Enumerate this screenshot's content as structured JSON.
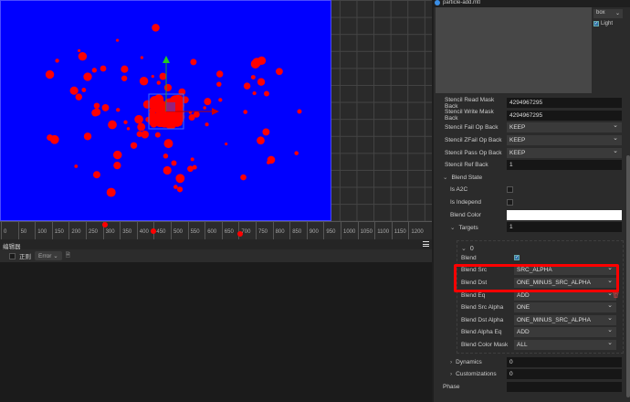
{
  "scene": {
    "background_color": "#0000ff",
    "particle_color": "#ff0000",
    "ruler_ticks": [
      "0",
      "50",
      "100",
      "150",
      "200",
      "250",
      "300",
      "350",
      "400",
      "450",
      "500",
      "550",
      "600",
      "650",
      "700",
      "750",
      "800",
      "850",
      "900",
      "950",
      "1000",
      "1050",
      "1100",
      "1150",
      "1200"
    ]
  },
  "console": {
    "panel_title": "编辑器",
    "regex_label": "正则",
    "level_select": "Error"
  },
  "inspector": {
    "title": "particle-add.mtl",
    "preview_shape": "box",
    "light_label": "Light",
    "light_checked": true,
    "stencil": [
      {
        "label": "Stencil Read Mask Back",
        "value": "4294967295",
        "type": "input"
      },
      {
        "label": "Stencil Write Mask Back",
        "value": "4294967295",
        "type": "input"
      },
      {
        "label": "Stencil Fail Op Back",
        "value": "KEEP",
        "type": "select"
      },
      {
        "label": "Stencil ZFail Op Back",
        "value": "KEEP",
        "type": "select"
      },
      {
        "label": "Stencil Pass Op Back",
        "value": "KEEP",
        "type": "select"
      },
      {
        "label": "Stencil Ref Back",
        "value": "1",
        "type": "input"
      }
    ],
    "blend_state": {
      "label": "Blend State",
      "is_a2c": "Is A2C",
      "is_independ": "Is Independ",
      "blend_color": "Blend Color",
      "blend_color_value": "#ffffff",
      "targets": "Targets",
      "targets_value": "1",
      "target_index": "0",
      "blend": "Blend",
      "blend_checked": true,
      "fields": [
        {
          "label": "Blend Src",
          "value": "SRC_ALPHA",
          "highlighted": true
        },
        {
          "label": "Blend Dst",
          "value": "ONE_MINUS_SRC_ALPHA",
          "highlighted": true
        },
        {
          "label": "Blend Eq",
          "value": "ADD"
        },
        {
          "label": "Blend Src Alpha",
          "value": "ONE"
        },
        {
          "label": "Blend Dst Alpha",
          "value": "ONE_MINUS_SRC_ALPHA"
        },
        {
          "label": "Blend Alpha Eq",
          "value": "ADD"
        },
        {
          "label": "Blend Color Mask",
          "value": "ALL"
        }
      ]
    },
    "dynamics": {
      "label": "Dynamics",
      "value": "0"
    },
    "customizations": {
      "label": "Customizations",
      "value": "0"
    },
    "phase": {
      "label": "Phase",
      "value": ""
    },
    "highlight_color": "#ff0000"
  }
}
